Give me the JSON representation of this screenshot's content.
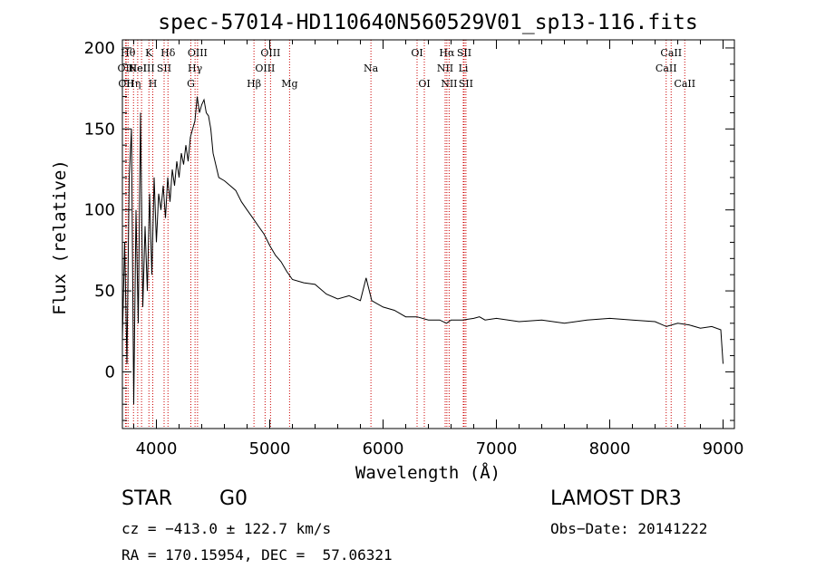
{
  "chart_data": {
    "type": "line",
    "title": "spec-57014-HD110640N560529V01_sp13-116.fits",
    "xlabel": "Wavelength (Å)",
    "ylabel": "Flux (relative)",
    "xlim": [
      3700,
      9100
    ],
    "ylim": [
      -35,
      205
    ],
    "x_ticks": [
      4000,
      5000,
      6000,
      7000,
      8000,
      9000
    ],
    "y_ticks": [
      0,
      50,
      100,
      150,
      200
    ],
    "series": [
      {
        "name": "spectrum",
        "x": [
          3700,
          3720,
          3740,
          3760,
          3780,
          3800,
          3820,
          3840,
          3860,
          3880,
          3900,
          3920,
          3940,
          3960,
          3980,
          4000,
          4020,
          4040,
          4060,
          4080,
          4100,
          4120,
          4140,
          4160,
          4180,
          4200,
          4220,
          4240,
          4260,
          4280,
          4300,
          4320,
          4340,
          4360,
          4380,
          4400,
          4420,
          4440,
          4460,
          4480,
          4500,
          4550,
          4600,
          4650,
          4700,
          4750,
          4800,
          4850,
          4900,
          4950,
          5000,
          5050,
          5100,
          5150,
          5200,
          5300,
          5400,
          5500,
          5600,
          5700,
          5800,
          5850,
          5900,
          5950,
          6000,
          6100,
          6200,
          6300,
          6400,
          6500,
          6560,
          6600,
          6700,
          6800,
          6850,
          6900,
          7000,
          7200,
          7400,
          7600,
          7800,
          8000,
          8200,
          8400,
          8500,
          8600,
          8700,
          8800,
          8900,
          8980,
          9000
        ],
        "y": [
          20,
          80,
          5,
          120,
          150,
          -20,
          100,
          30,
          160,
          40,
          90,
          50,
          110,
          60,
          120,
          80,
          110,
          100,
          115,
          95,
          120,
          105,
          125,
          115,
          130,
          120,
          135,
          128,
          140,
          130,
          145,
          150,
          155,
          170,
          160,
          165,
          168,
          160,
          158,
          150,
          135,
          120,
          118,
          115,
          112,
          105,
          100,
          95,
          90,
          85,
          78,
          72,
          68,
          62,
          57,
          55,
          54,
          48,
          45,
          47,
          44,
          58,
          44,
          42,
          40,
          38,
          34,
          34,
          32,
          32,
          30,
          32,
          32,
          33,
          34,
          32,
          33,
          31,
          32,
          30,
          32,
          33,
          32,
          31,
          28,
          30,
          29,
          27,
          28,
          26,
          5
        ]
      }
    ],
    "line_markers": [
      {
        "wl": 3727,
        "label": "OII",
        "row": 2
      },
      {
        "wl": 3734,
        "label": "OII",
        "row": 3
      },
      {
        "wl": 3750,
        "label": "Hθ",
        "row": 1
      },
      {
        "wl": 3798,
        "label": "Hη",
        "row": 3
      },
      {
        "wl": 3835,
        "label": "HeI",
        "row": 2
      },
      {
        "wl": 3869,
        "label": "NeIII",
        "row": 2
      },
      {
        "wl": 3934,
        "label": "K",
        "row": 1
      },
      {
        "wl": 3968,
        "label": "H",
        "row": 3
      },
      {
        "wl": 4068,
        "label": "SII",
        "row": 2
      },
      {
        "wl": 4102,
        "label": "Hδ",
        "row": 1
      },
      {
        "wl": 4304,
        "label": "G",
        "row": 3
      },
      {
        "wl": 4341,
        "label": "Hγ",
        "row": 2
      },
      {
        "wl": 4363,
        "label": "OIII",
        "row": 1
      },
      {
        "wl": 4861,
        "label": "Hβ",
        "row": 3
      },
      {
        "wl": 4959,
        "label": "OIII",
        "row": 2
      },
      {
        "wl": 5007,
        "label": "OIII",
        "row": 1
      },
      {
        "wl": 5175,
        "label": "Mg",
        "row": 3
      },
      {
        "wl": 5893,
        "label": "Na",
        "row": 2
      },
      {
        "wl": 6300,
        "label": "OI",
        "row": 1
      },
      {
        "wl": 6364,
        "label": "OI",
        "row": 3
      },
      {
        "wl": 6548,
        "label": "NII",
        "row": 2
      },
      {
        "wl": 6563,
        "label": "Hα",
        "row": 1
      },
      {
        "wl": 6583,
        "label": "NII",
        "row": 3
      },
      {
        "wl": 6708,
        "label": "Li",
        "row": 2
      },
      {
        "wl": 6716,
        "label": "SII",
        "row": 1
      },
      {
        "wl": 6731,
        "label": "SII",
        "row": 3
      },
      {
        "wl": 8498,
        "label": "CaII",
        "row": 2
      },
      {
        "wl": 8542,
        "label": "CaII",
        "row": 1
      },
      {
        "wl": 8662,
        "label": "CaII",
        "row": 3
      }
    ]
  },
  "info": {
    "object_class": "STAR",
    "subclass": "G0",
    "survey": "LAMOST DR3",
    "cz_line": "cz = −413.0 ± 122.7 km/s",
    "obs_date": "Obs−Date: 20141222",
    "coords": "RA = 170.15954, DEC =  57.06321"
  },
  "colors": {
    "axis": "#000000",
    "spectrum": "#000000",
    "marker": "#cc0000"
  }
}
